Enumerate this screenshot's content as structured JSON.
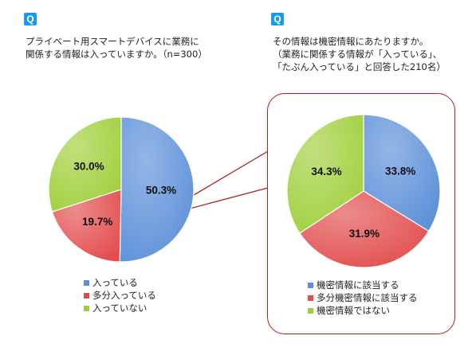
{
  "left": {
    "q_badge": "Q",
    "question_lines": [
      "プライベート用スマートデバイスに業務に",
      "関係する情報は入っていますか。（n=300）"
    ]
  },
  "right": {
    "q_badge": "Q",
    "question_lines": [
      "その情報は機密情報にあたりますか。",
      "（業務に関係する情報が「入っている」、",
      "「たぶん入っている」と回答した210名）"
    ]
  },
  "chart_data": [
    {
      "type": "pie",
      "slices": [
        {
          "label": "入っている",
          "value": 50.3,
          "display": "50.3%",
          "color": "#5b8fd9"
        },
        {
          "label": "多分入っている",
          "value": 19.7,
          "display": "19.7%",
          "color": "#e24c4c"
        },
        {
          "label": "入っていない",
          "value": 30.0,
          "display": "30.0%",
          "color": "#9fcf3a"
        }
      ],
      "legend_position": "bottom"
    },
    {
      "type": "pie",
      "slices": [
        {
          "label": "機密情報に該当する",
          "value": 33.8,
          "display": "33.8%",
          "color": "#5b8fd9"
        },
        {
          "label": "多分機密情報に該当する",
          "value": 31.9,
          "display": "31.9%",
          "color": "#e24c4c"
        },
        {
          "label": "機密情報ではない",
          "value": 34.3,
          "display": "34.3%",
          "color": "#9fcf3a"
        }
      ],
      "legend_position": "bottom"
    }
  ]
}
